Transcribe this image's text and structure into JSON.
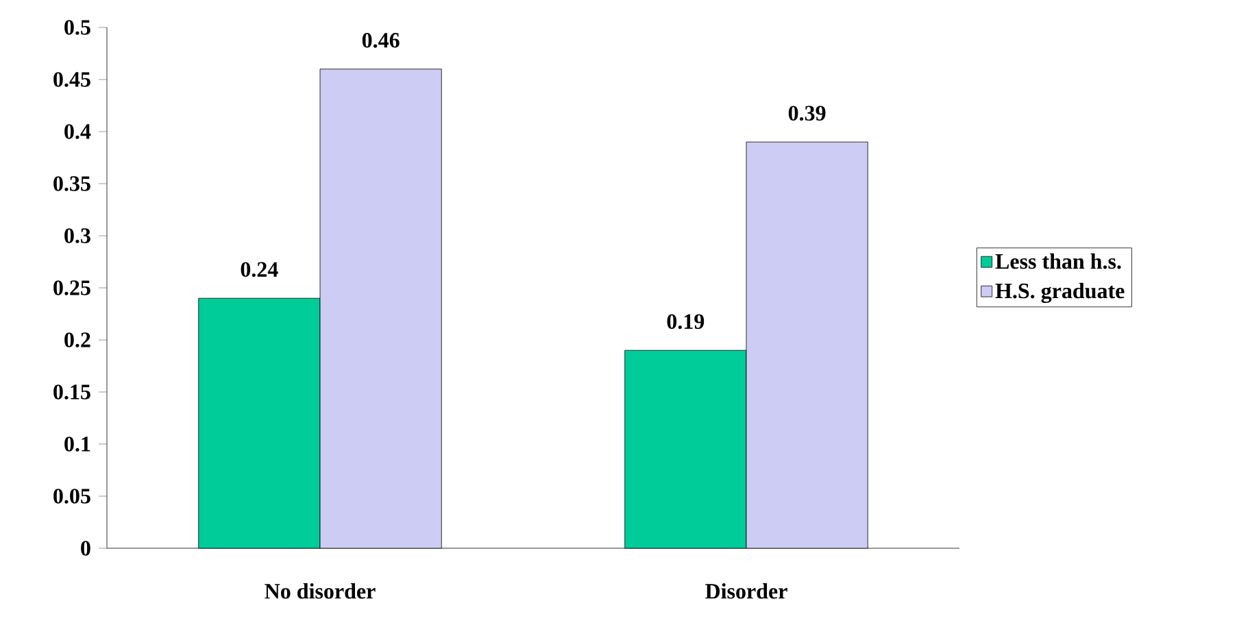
{
  "chart_data": {
    "type": "bar",
    "categories": [
      "No disorder",
      "Disorder"
    ],
    "series": [
      {
        "name": "Less than h.s.",
        "color": "#00cc99",
        "values": [
          0.24,
          0.19
        ]
      },
      {
        "name": "H.S. graduate",
        "color": "#ccccf5",
        "values": [
          0.46,
          0.39
        ]
      }
    ],
    "ylim": [
      0,
      0.5
    ],
    "yticks": [
      0,
      0.05,
      0.1,
      0.15,
      0.2,
      0.25,
      0.3,
      0.35,
      0.4,
      0.45,
      0.5
    ],
    "data_labels": true,
    "legend": "right",
    "grid": false
  }
}
